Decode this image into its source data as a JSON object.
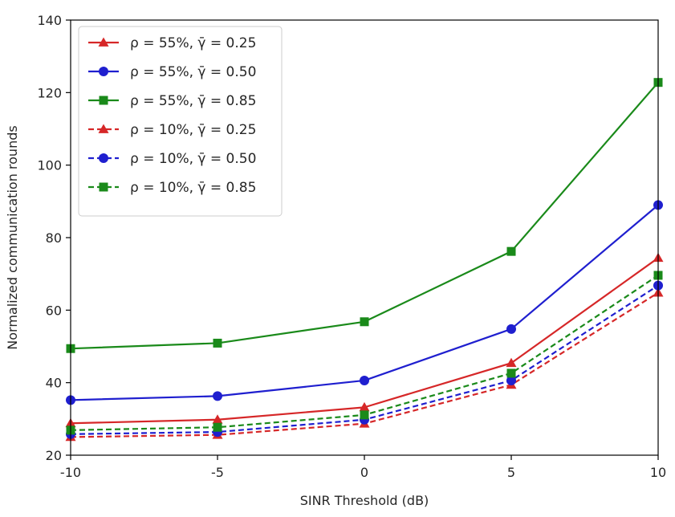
{
  "chart_data": {
    "type": "line",
    "xlabel": "SINR Threshold (dB)",
    "ylabel": "Normalized communication rounds",
    "x": [
      -10,
      -5,
      0,
      5,
      10
    ],
    "x_tick_labels": [
      "-10",
      "-5",
      "0",
      "5",
      "10"
    ],
    "y_tick_labels": [
      "20",
      "40",
      "60",
      "80",
      "100",
      "120",
      "140"
    ],
    "xlim": [
      -10,
      10
    ],
    "ylim": [
      20,
      140
    ],
    "grid": false,
    "legend_position": "top-left",
    "series": [
      {
        "name": "ρ = 55%, γ̄ = 0.25",
        "values": [
          28.8,
          29.8,
          33.2,
          45.4,
          74.4
        ],
        "color": "#d62728",
        "marker": "triangle",
        "linestyle": "solid"
      },
      {
        "name": "ρ = 55%, γ̄ = 0.50",
        "values": [
          35.2,
          36.3,
          40.6,
          54.8,
          89.0
        ],
        "color": "#1f1fcf",
        "marker": "circle",
        "linestyle": "solid"
      },
      {
        "name": "ρ = 55%, γ̄ = 0.85",
        "values": [
          49.4,
          50.9,
          56.8,
          76.2,
          122.8
        ],
        "color": "#1a8a1a",
        "marker": "square",
        "linestyle": "solid"
      },
      {
        "name": "ρ = 10%, γ̄ = 0.25",
        "values": [
          25.0,
          25.6,
          28.7,
          39.4,
          64.8
        ],
        "color": "#d62728",
        "marker": "triangle",
        "linestyle": "dashed"
      },
      {
        "name": "ρ = 10%, γ̄ = 0.50",
        "values": [
          25.8,
          26.4,
          29.8,
          40.6,
          66.8
        ],
        "color": "#1f1fcf",
        "marker": "circle",
        "linestyle": "dashed"
      },
      {
        "name": "ρ = 10%, γ̄ = 0.85",
        "values": [
          26.9,
          27.7,
          31.1,
          42.6,
          69.6
        ],
        "color": "#1a8a1a",
        "marker": "square",
        "linestyle": "dashed"
      }
    ]
  }
}
